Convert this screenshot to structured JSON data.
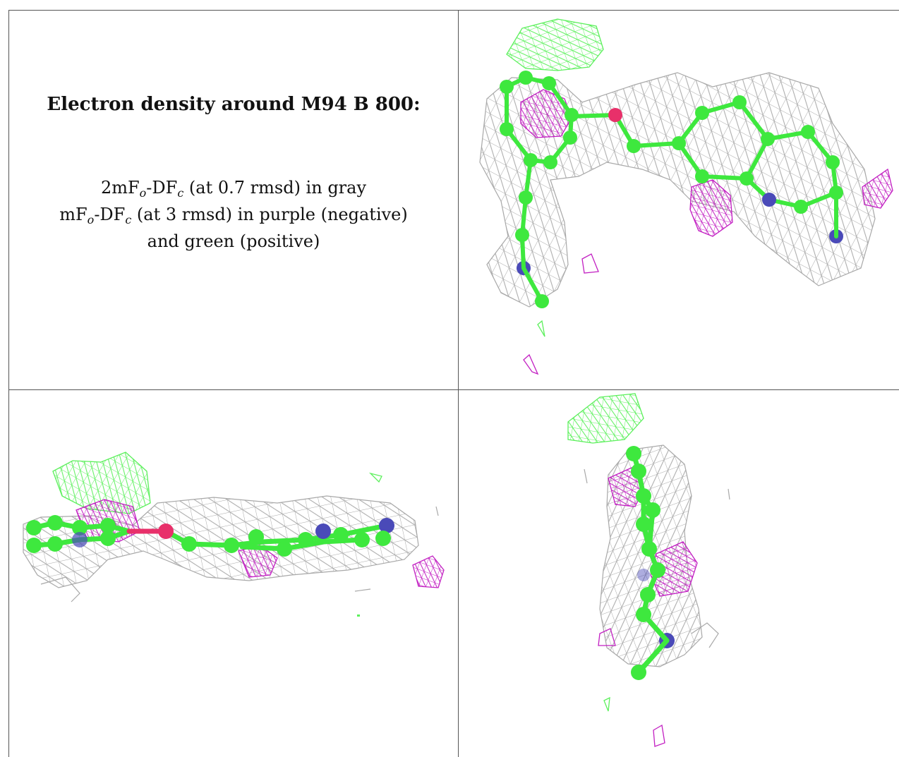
{
  "heading": "Electron density around M94 B 800:",
  "legend": {
    "line1": {
      "pre": "2mF",
      "sub1": "o",
      "mid": "-DF",
      "sub2": "c",
      "post": " (at 0.7 rmsd) in gray"
    },
    "line2": {
      "pre": "mF",
      "sub1": "o",
      "mid": "-DF",
      "sub2": "c",
      "post": " (at 3 rmsd) in purple (negative)"
    },
    "line3": "and green (positive)"
  },
  "colors": {
    "map_2fofc": "#a8a8a8",
    "map_negative": "#c21fc2",
    "map_positive": "#5cf05c",
    "carbon": "#3ee83e",
    "nitrogen": "#4a4ab8",
    "oxygen": "#e8306a"
  }
}
